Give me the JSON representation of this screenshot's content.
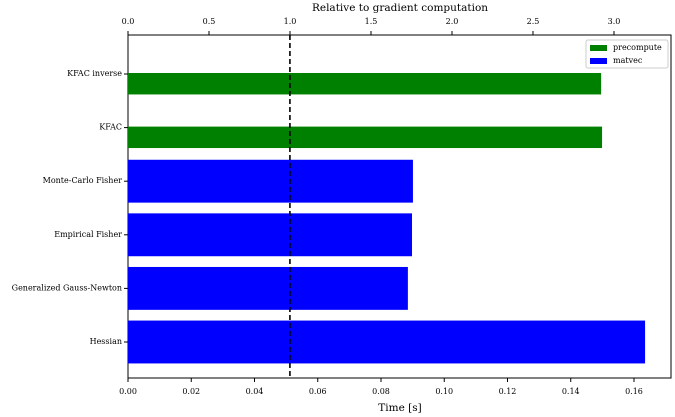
{
  "chart_data": {
    "type": "barh",
    "xlabel": "Time [s]",
    "x2label": "Relative to gradient computation",
    "categories": [
      "KFAC inverse",
      "KFAC",
      "Monte-Carlo Fisher",
      "Empirical Fisher",
      "Generalized Gauss-Newton",
      "Hessian"
    ],
    "series": [
      {
        "name": "precompute",
        "color": "#008000",
        "values": [
          0.1496,
          0.1499,
          null,
          null,
          null,
          null
        ]
      },
      {
        "name": "matvec",
        "color": "#0000ff",
        "values": [
          null,
          null,
          0.0901,
          0.0898,
          0.0885,
          0.1635
        ]
      }
    ],
    "xlim": [
      0,
      0.1717
    ],
    "xticks": [
      {
        "value": 0,
        "label": "0.00"
      },
      {
        "value": 0.02,
        "label": "0.02"
      },
      {
        "value": 0.04,
        "label": "0.04"
      },
      {
        "value": 0.06,
        "label": "0.06"
      },
      {
        "value": 0.08,
        "label": "0.08"
      },
      {
        "value": 0.1,
        "label": "0.10"
      },
      {
        "value": 0.12,
        "label": "0.12"
      },
      {
        "value": 0.14,
        "label": "0.14"
      },
      {
        "value": 0.16,
        "label": "0.16"
      }
    ],
    "x2lim": [
      0,
      3.352
    ],
    "x2ticks": [
      {
        "value": 0,
        "label": "0.0"
      },
      0.5,
      {
        "value": 1,
        "label": "1.0"
      },
      1.5,
      {
        "value": 2,
        "label": "2.0"
      },
      2.5,
      {
        "value": 3,
        "label": "3.0"
      }
    ],
    "vline": 0.0512,
    "legend": "upper right"
  }
}
